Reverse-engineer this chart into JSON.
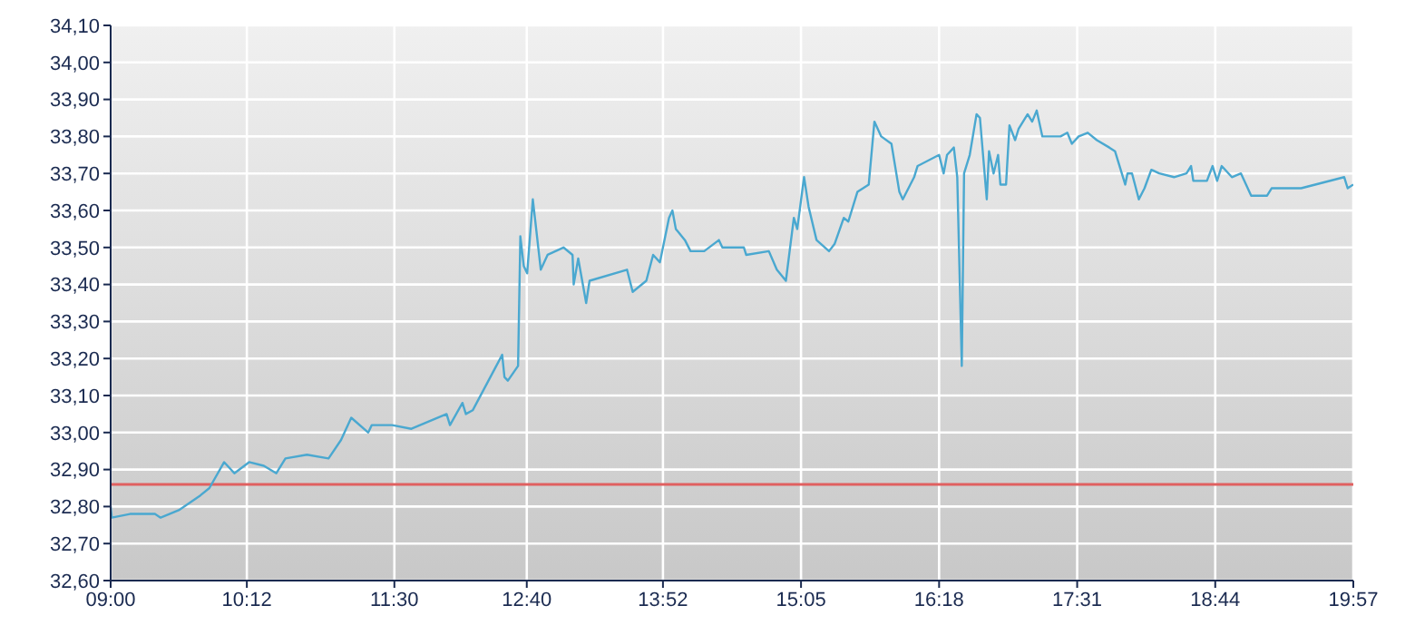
{
  "chart_data": {
    "type": "line",
    "x": [
      9.0,
      9.01,
      9.17,
      9.39,
      9.44,
      9.6,
      9.79,
      9.87,
      10.0,
      10.09,
      10.22,
      10.35,
      10.46,
      10.54,
      10.73,
      10.92,
      11.03,
      11.12,
      11.27,
      11.3,
      11.48,
      11.65,
      11.96,
      11.99,
      12.1,
      12.13,
      12.19,
      12.45,
      12.47,
      12.5,
      12.59,
      12.61,
      12.64,
      12.67,
      12.72,
      12.79,
      12.85,
      12.99,
      13.07,
      13.08,
      13.12,
      13.19,
      13.22,
      13.55,
      13.6,
      13.72,
      13.78,
      13.84,
      13.92,
      13.95,
      13.98,
      14.06,
      14.11,
      14.23,
      14.36,
      14.39,
      14.58,
      14.6,
      14.8,
      14.87,
      14.95,
      15.02,
      15.05,
      15.11,
      15.15,
      15.22,
      15.33,
      15.38,
      15.46,
      15.5,
      15.58,
      15.68,
      15.73,
      15.79,
      15.88,
      15.95,
      15.98,
      16.08,
      16.11,
      16.3,
      16.34,
      16.37,
      16.43,
      16.46,
      16.5,
      16.52,
      16.57,
      16.63,
      16.66,
      16.72,
      16.74,
      16.78,
      16.82,
      16.84,
      16.89,
      16.92,
      16.97,
      17.0,
      17.08,
      17.12,
      17.16,
      17.21,
      17.37,
      17.43,
      17.47,
      17.53,
      17.61,
      17.69,
      17.8,
      17.85,
      17.91,
      17.94,
      17.96,
      18.0,
      18.06,
      18.11,
      18.17,
      18.24,
      18.37,
      18.48,
      18.52,
      18.54,
      18.66,
      18.71,
      18.75,
      18.79,
      18.88,
      18.96,
      19.05,
      19.19,
      19.23,
      19.49,
      19.87,
      19.9,
      19.95
    ],
    "series": [
      {
        "color": "#4aa8d0",
        "values": [
          32.8,
          32.77,
          32.78,
          32.78,
          32.77,
          32.79,
          32.83,
          32.85,
          32.92,
          32.89,
          32.92,
          32.91,
          32.89,
          32.93,
          32.94,
          32.93,
          32.98,
          33.04,
          33.0,
          33.02,
          33.02,
          33.01,
          33.05,
          33.02,
          33.08,
          33.05,
          33.06,
          33.21,
          33.15,
          33.14,
          33.18,
          33.53,
          33.45,
          33.43,
          33.63,
          33.44,
          33.48,
          33.5,
          33.48,
          33.4,
          33.47,
          33.35,
          33.41,
          33.44,
          33.38,
          33.41,
          33.48,
          33.46,
          33.58,
          33.6,
          33.55,
          33.52,
          33.49,
          33.49,
          33.52,
          33.5,
          33.5,
          33.48,
          33.49,
          33.44,
          33.41,
          33.58,
          33.55,
          33.69,
          33.61,
          33.52,
          33.49,
          33.51,
          33.58,
          33.57,
          33.65,
          33.67,
          33.84,
          33.8,
          33.78,
          33.65,
          33.63,
          33.69,
          33.72,
          33.75,
          33.7,
          33.75,
          33.77,
          33.69,
          33.18,
          33.7,
          33.75,
          33.86,
          33.85,
          33.63,
          33.76,
          33.7,
          33.75,
          33.67,
          33.67,
          33.83,
          33.79,
          33.82,
          33.86,
          33.84,
          33.87,
          33.8,
          33.8,
          33.81,
          33.78,
          33.8,
          33.81,
          33.79,
          33.77,
          33.76,
          33.7,
          33.67,
          33.7,
          33.7,
          33.63,
          33.66,
          33.71,
          33.7,
          33.69,
          33.7,
          33.72,
          33.68,
          33.68,
          33.72,
          33.68,
          33.72,
          33.69,
          33.7,
          33.64,
          33.64,
          33.66,
          33.66,
          33.69,
          33.66,
          33.67
        ]
      }
    ],
    "xlim": [
      9.0,
      19.95
    ],
    "xticks": [
      {
        "value": 9.0,
        "label": "09:00"
      },
      {
        "value": 10.2,
        "label": "10:12"
      },
      {
        "value": 11.5,
        "label": "11:30"
      },
      {
        "value": 12.6667,
        "label": "12:40"
      },
      {
        "value": 13.8667,
        "label": "13:52"
      },
      {
        "value": 15.0833,
        "label": "15:05"
      },
      {
        "value": 16.3,
        "label": "16:18"
      },
      {
        "value": 17.5167,
        "label": "17:31"
      },
      {
        "value": 18.7333,
        "label": "18:44"
      },
      {
        "value": 19.95,
        "label": "19:57"
      }
    ],
    "ylim": [
      32.6,
      34.1
    ],
    "yticks": [
      {
        "value": 32.6,
        "label": "32,60"
      },
      {
        "value": 32.7,
        "label": "32,70"
      },
      {
        "value": 32.8,
        "label": "32,80"
      },
      {
        "value": 32.9,
        "label": "32,90"
      },
      {
        "value": 33.0,
        "label": "33,00"
      },
      {
        "value": 33.1,
        "label": "33,10"
      },
      {
        "value": 33.2,
        "label": "33,20"
      },
      {
        "value": 33.3,
        "label": "33,30"
      },
      {
        "value": 33.4,
        "label": "33,40"
      },
      {
        "value": 33.5,
        "label": "33,50"
      },
      {
        "value": 33.6,
        "label": "33,60"
      },
      {
        "value": 33.7,
        "label": "33,70"
      },
      {
        "value": 33.8,
        "label": "33,80"
      },
      {
        "value": 33.9,
        "label": "33,90"
      },
      {
        "value": 34.0,
        "label": "34,00"
      },
      {
        "value": 34.1,
        "label": "34,10"
      }
    ],
    "ref_lines": [
      {
        "axis": "y",
        "value": 32.86,
        "color": "#e06060"
      }
    ],
    "grid": true,
    "marker": "none",
    "line_style": "solid"
  }
}
